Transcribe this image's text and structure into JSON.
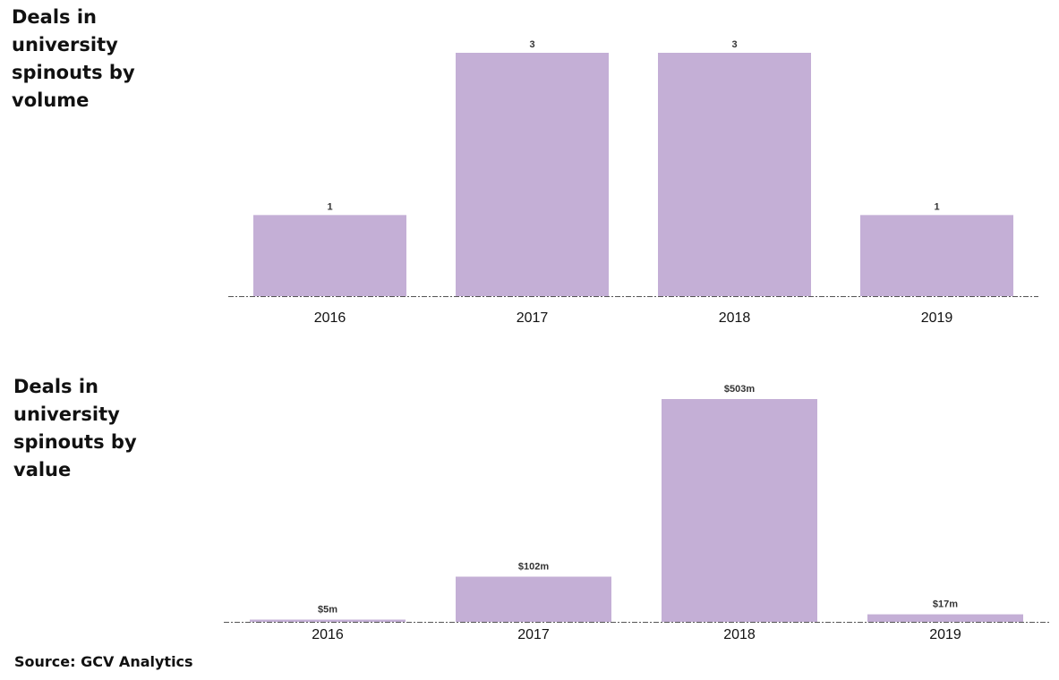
{
  "chart_data": [
    {
      "type": "bar",
      "title": "Deals in university spinouts by volume",
      "categories": [
        "2016",
        "2017",
        "2018",
        "2019"
      ],
      "values": [
        1,
        3,
        3,
        1
      ],
      "labels": [
        "1",
        "3",
        "3",
        "1"
      ],
      "xlabel": "",
      "ylabel": "",
      "ylim": [
        0,
        3
      ],
      "grid": false,
      "bar_color": "#c4afd6"
    },
    {
      "type": "bar",
      "title": "Deals in university spinouts by value",
      "categories": [
        "2016",
        "2017",
        "2018",
        "2019"
      ],
      "values": [
        5,
        102,
        503,
        17
      ],
      "labels": [
        "$5m",
        "$102m",
        "$503m",
        "$17m"
      ],
      "xlabel": "",
      "ylabel": "",
      "ylim": [
        0,
        503
      ],
      "grid": false,
      "bar_color": "#c4afd6"
    }
  ],
  "source": "Source: GCV Analytics"
}
